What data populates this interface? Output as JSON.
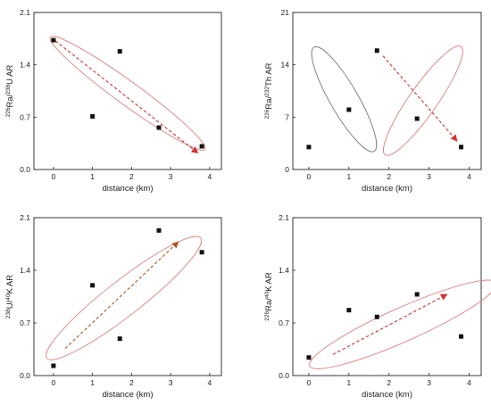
{
  "chart_data": [
    {
      "type": "scatter",
      "xlabel": "distance (km)",
      "ylabel": {
        "parts": [
          {
            "t": "226",
            "sup": true
          },
          {
            "t": "Ra/"
          },
          {
            "t": "238",
            "sup": true
          },
          {
            "t": "U AR"
          }
        ]
      },
      "xlim": [
        -0.5,
        4.3
      ],
      "ylim": [
        0,
        2.1
      ],
      "xticks": [
        0,
        1,
        2,
        3,
        4
      ],
      "yticks": [
        0.0,
        0.7,
        1.4,
        2.1
      ],
      "ytick_labels": [
        "0.0",
        "0.7",
        "1.4",
        "2.1"
      ],
      "points": [
        {
          "x": 0,
          "y": 1.73
        },
        {
          "x": 1,
          "y": 0.71
        },
        {
          "x": 1.7,
          "y": 1.58
        },
        {
          "x": 2.7,
          "y": 0.56
        },
        {
          "x": 3.8,
          "y": 0.31
        }
      ],
      "ellipses": [
        {
          "cx": 1.9,
          "cy": 1.02,
          "rx": 2.45,
          "ry": 0.3,
          "angle": 36,
          "color": "#e37f7f"
        }
      ],
      "arrows": [
        {
          "x1": 0.05,
          "y1": 1.72,
          "x2": 3.7,
          "y2": 0.22,
          "color": "#d9302f"
        }
      ],
      "grid": false
    },
    {
      "type": "scatter",
      "xlabel": "distance (km)",
      "ylabel": {
        "parts": [
          {
            "t": "226",
            "sup": true
          },
          {
            "t": "Ra/"
          },
          {
            "t": "232",
            "sup": true
          },
          {
            "t": "Th AR"
          }
        ]
      },
      "xlim": [
        -0.4,
        4.3
      ],
      "ylim": [
        0,
        21
      ],
      "xticks": [
        0,
        1,
        2,
        3,
        4
      ],
      "yticks": [
        0,
        7,
        14,
        21
      ],
      "ytick_labels": [
        "0",
        "7",
        "14",
        "21"
      ],
      "points": [
        {
          "x": 0,
          "y": 3.0
        },
        {
          "x": 1,
          "y": 8.0
        },
        {
          "x": 1.7,
          "y": 15.9
        },
        {
          "x": 2.7,
          "y": 6.8
        },
        {
          "x": 3.8,
          "y": 3.0
        }
      ],
      "ellipses": [
        {
          "cx": 0.88,
          "cy": 9.4,
          "rx": 1.5,
          "ry": 0.35,
          "angle": 60,
          "color": "#777777"
        },
        {
          "cx": 2.85,
          "cy": 9.2,
          "rx": 1.65,
          "ry": 0.35,
          "angle": -55,
          "color": "#e37f7f"
        }
      ],
      "arrows": [
        {
          "x1": 1.85,
          "y1": 15.2,
          "x2": 3.7,
          "y2": 3.8,
          "color": "#d9302f"
        }
      ],
      "grid": false
    },
    {
      "type": "scatter",
      "xlabel": "distance (km)",
      "ylabel": {
        "parts": [
          {
            "t": "238",
            "sup": true
          },
          {
            "t": "U/"
          },
          {
            "t": "40",
            "sup": true
          },
          {
            "t": "K AR"
          }
        ]
      },
      "xlim": [
        -0.5,
        4.3
      ],
      "ylim": [
        0,
        2.1
      ],
      "xticks": [
        0,
        1,
        2,
        3,
        4
      ],
      "yticks": [
        0.0,
        0.7,
        1.4,
        2.1
      ],
      "ytick_labels": [
        "0.0",
        "0.7",
        "1.4",
        "2.1"
      ],
      "points": [
        {
          "x": 0,
          "y": 0.13
        },
        {
          "x": 1,
          "y": 1.2
        },
        {
          "x": 1.7,
          "y": 0.49
        },
        {
          "x": 2.7,
          "y": 1.93
        },
        {
          "x": 3.8,
          "y": 1.64
        }
      ],
      "ellipses": [
        {
          "cx": 1.8,
          "cy": 1.03,
          "rx": 2.5,
          "ry": 0.45,
          "angle": -38,
          "color": "#e37f7f"
        }
      ],
      "arrows": [
        {
          "x1": 0.3,
          "y1": 0.36,
          "x2": 3.2,
          "y2": 1.78,
          "color": "#b5561f"
        }
      ],
      "grid": false
    },
    {
      "type": "scatter",
      "xlabel": "distance (km)",
      "ylabel": {
        "parts": [
          {
            "t": "226",
            "sup": true
          },
          {
            "t": "Ra/"
          },
          {
            "t": "40",
            "sup": true
          },
          {
            "t": "K AR"
          }
        ]
      },
      "xlim": [
        -0.4,
        4.3
      ],
      "ylim": [
        0,
        2.1
      ],
      "xticks": [
        0,
        1,
        2,
        3,
        4
      ],
      "yticks": [
        0.0,
        0.7,
        1.4,
        2.1
      ],
      "ytick_labels": [
        "0.0",
        "0.7",
        "1.4",
        "2.1"
      ],
      "points": [
        {
          "x": 0,
          "y": 0.24
        },
        {
          "x": 1,
          "y": 0.87
        },
        {
          "x": 1.7,
          "y": 0.78
        },
        {
          "x": 2.7,
          "y": 1.08
        },
        {
          "x": 3.8,
          "y": 0.52
        }
      ],
      "ellipses": [
        {
          "cx": 2.35,
          "cy": 0.68,
          "rx": 2.55,
          "ry": 0.42,
          "angle": -24,
          "color": "#e37f7f"
        }
      ],
      "arrows": [
        {
          "x1": 0.6,
          "y1": 0.28,
          "x2": 3.45,
          "y2": 1.08,
          "color": "#d9302f"
        }
      ],
      "grid": false
    }
  ]
}
